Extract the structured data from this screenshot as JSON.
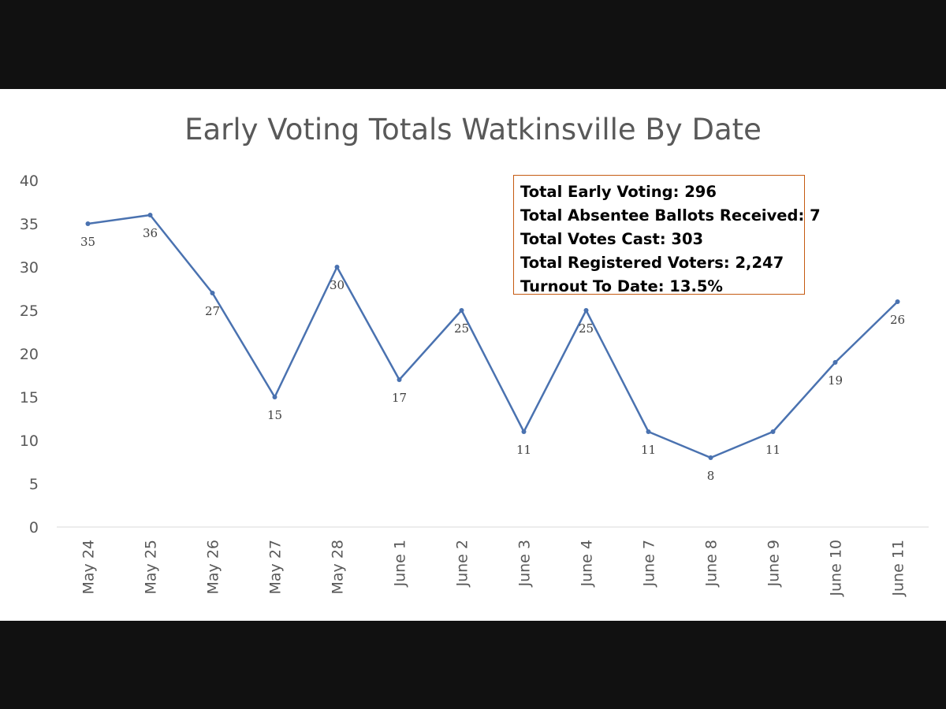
{
  "chart_data": {
    "type": "line",
    "title": "Early Voting Totals Watkinsville By Date",
    "xlabel": "",
    "ylabel": "",
    "categories": [
      "May 24",
      "May 25",
      "May 26",
      "May 27",
      "May 28",
      "June 1",
      "June 2",
      "June 3",
      "June 4",
      "June 7",
      "June 8",
      "June 9",
      "June 10",
      "June 11"
    ],
    "series": [
      {
        "values": [
          35,
          36,
          27,
          15,
          30,
          17,
          25,
          11,
          25,
          11,
          8,
          11,
          19,
          26
        ],
        "color": "#4a72b0"
      }
    ],
    "ylim": [
      0,
      40
    ],
    "yticks": [
      0,
      5,
      10,
      15,
      20,
      25,
      30,
      35,
      40
    ],
    "grid": false,
    "data_labels": true,
    "annotation": {
      "lines": [
        "Total Early Voting: 296",
        "Total Absentee Ballots Received: 7",
        "Total Votes Cast: 303",
        "Total Registered Voters: 2,247",
        "Turnout To Date: 13.5%"
      ],
      "border_color": "#c55a11"
    }
  }
}
